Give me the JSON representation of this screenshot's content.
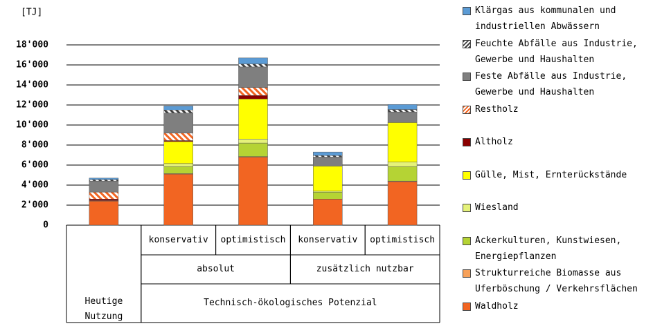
{
  "chart_data": {
    "type": "stacked_bar",
    "unit_label": "[TJ]",
    "categories": [
      null,
      "konservativ",
      "optimistisch",
      "konservativ",
      "optimistisch"
    ],
    "group_labels": [
      null,
      "absolut",
      "absolut",
      "zusätzlich nutzbar",
      "zusätzlich nutzbar"
    ],
    "top_labels": [
      "Heutige Nutzung",
      "Technisch-ökologisches Potenzial",
      "Technisch-ökologisches Potenzial",
      "Technisch-ökologisches Potenzial",
      "Technisch-ökologisches Potenzial"
    ],
    "ylim": [
      0,
      18000
    ],
    "yticks": [
      0,
      {
        "value": 2000,
        "label": "2'000"
      },
      {
        "value": 4000,
        "label": "4'000"
      },
      {
        "value": 6000,
        "label": "6'000"
      },
      {
        "value": 8000,
        "label": "8'000"
      },
      {
        "value": 10000,
        "label": "10'000"
      },
      {
        "value": 12000,
        "label": "12'000"
      },
      {
        "value": 14000,
        "label": "14'000"
      },
      {
        "value": 16000,
        "label": "16'000"
      },
      {
        "value": 18000,
        "label": "18'000"
      }
    ],
    "grid": true,
    "series": [
      {
        "name": "Waldholz",
        "color": "#f26522",
        "values": [
          2400,
          5100,
          6800,
          2600,
          4350
        ]
      },
      {
        "name": "Strukturreiche Biomasse aus Uferböschung / Verkehrsflächen",
        "color": "#f7a15a",
        "values": [
          50,
          50,
          50,
          0,
          50
        ]
      },
      {
        "name": "Ackerkulturen, Kunstwiesen, Energiepflanzen",
        "color": "#b5d334",
        "values": [
          0,
          700,
          1350,
          700,
          1450
        ]
      },
      {
        "name": "Wiesland",
        "color": "#e5f27a",
        "values": [
          0,
          300,
          400,
          100,
          450
        ]
      },
      {
        "name": "Gülle, Mist, Ernterückstände",
        "color": "#ffff00",
        "values": [
          0,
          2200,
          4000,
          2500,
          3950
        ]
      },
      {
        "name": "Altholz",
        "color": "#8b0000",
        "values": [
          150,
          100,
          350,
          0,
          0
        ]
      },
      {
        "name": "Restholz",
        "color": "#f26522",
        "hatch": true,
        "values": [
          700,
          750,
          800,
          0,
          0
        ]
      },
      {
        "name": "Feste Abfälle aus Industrie, Gewerbe und Haushalten",
        "color": "#7f7f7f",
        "values": [
          1100,
          2000,
          2050,
          900,
          1050
        ]
      },
      {
        "name": "Feuchte Abfälle aus Industrie, Gewerbe und Haushalten",
        "color": "#404040",
        "hatch": true,
        "values": [
          150,
          300,
          300,
          150,
          250
        ]
      },
      {
        "name": "Klärgas aus kommunalen und industriellen Abwässern",
        "color": "#5b9bd5",
        "values": [
          150,
          400,
          600,
          350,
          500
        ]
      }
    ]
  }
}
